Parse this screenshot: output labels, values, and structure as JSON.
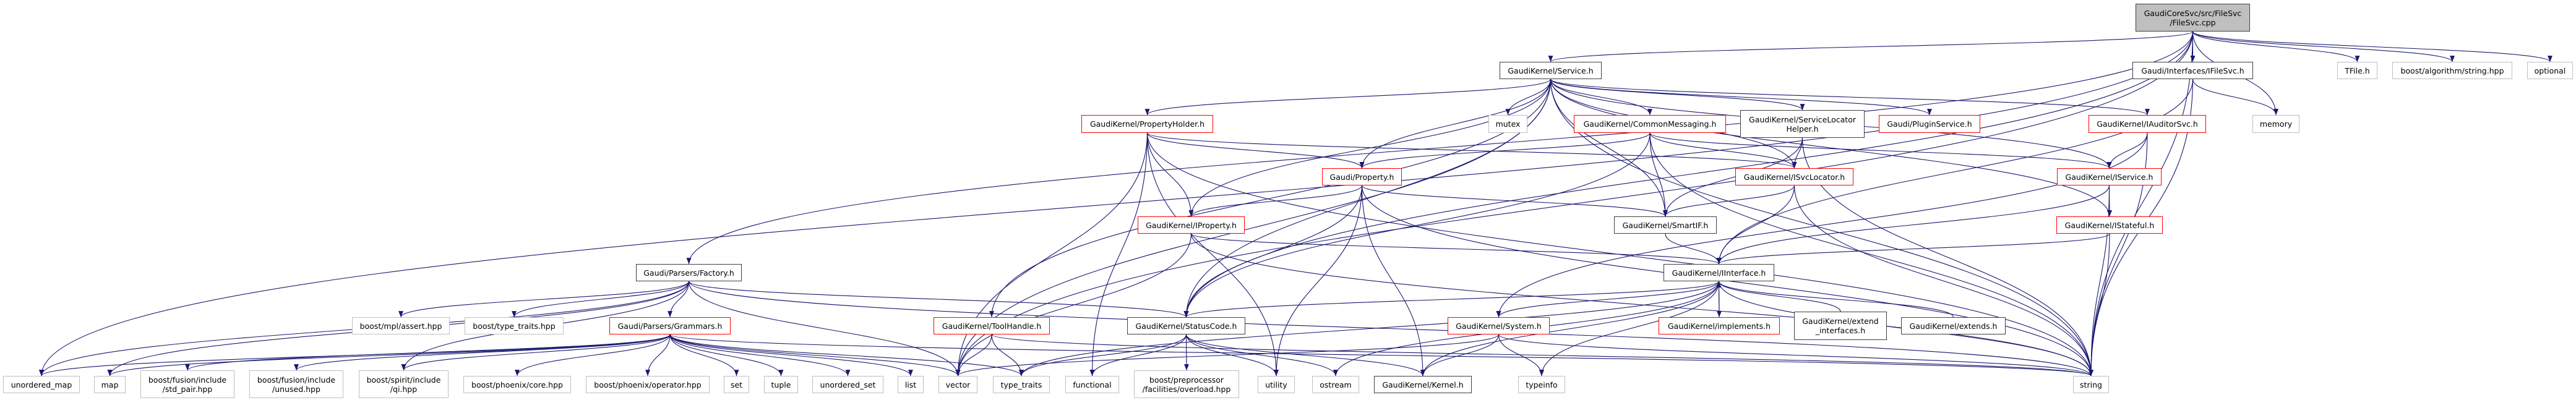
{
  "graph": {
    "colors": {
      "edge": "#191970",
      "root_fill": "#bfbfbf",
      "documented_border": "#404040",
      "undocumented_border": "#ff0000",
      "external_border": "#bfbfbf"
    },
    "nodes": [
      {
        "id": "root",
        "label": "GaudiCoreSvc/src/FileSvc\n/FileSvc.cpp",
        "kind": "root"
      },
      {
        "id": "Service",
        "label": "GaudiKernel/Service.h",
        "kind": "std"
      },
      {
        "id": "IFileSvc",
        "label": "Gaudi/Interfaces/IFileSvc.h",
        "kind": "std"
      },
      {
        "id": "TFile",
        "label": "TFile.h",
        "kind": "ext"
      },
      {
        "id": "boostalg",
        "label": "boost/algorithm/string.hpp",
        "kind": "ext"
      },
      {
        "id": "optional",
        "label": "optional",
        "kind": "ext"
      },
      {
        "id": "memory",
        "label": "memory",
        "kind": "ext"
      },
      {
        "id": "PropertyHolder",
        "label": "GaudiKernel/PropertyHolder.h",
        "kind": "red"
      },
      {
        "id": "mutex",
        "label": "mutex",
        "kind": "ext"
      },
      {
        "id": "CommonMessaging",
        "label": "GaudiKernel/CommonMessaging.h",
        "kind": "red"
      },
      {
        "id": "SLH",
        "label": "GaudiKernel/ServiceLocator\nHelper.h",
        "kind": "std"
      },
      {
        "id": "PluginService",
        "label": "Gaudi/PluginService.h",
        "kind": "red"
      },
      {
        "id": "IAuditorSvc",
        "label": "GaudiKernel/IAuditorSvc.h",
        "kind": "red"
      },
      {
        "id": "Property",
        "label": "Gaudi/Property.h",
        "kind": "red"
      },
      {
        "id": "ISvcLocator",
        "label": "GaudiKernel/ISvcLocator.h",
        "kind": "red"
      },
      {
        "id": "IService",
        "label": "GaudiKernel/IService.h",
        "kind": "red"
      },
      {
        "id": "IProperty",
        "label": "GaudiKernel/IProperty.h",
        "kind": "red"
      },
      {
        "id": "SmartIF",
        "label": "GaudiKernel/SmartIF.h",
        "kind": "std"
      },
      {
        "id": "IStateful",
        "label": "GaudiKernel/IStateful.h",
        "kind": "red"
      },
      {
        "id": "Factory",
        "label": "Gaudi/Parsers/Factory.h",
        "kind": "std"
      },
      {
        "id": "IInterface",
        "label": "GaudiKernel/IInterface.h",
        "kind": "std"
      },
      {
        "id": "mplassert",
        "label": "boost/mpl/assert.hpp",
        "kind": "ext"
      },
      {
        "id": "boosttypetraits",
        "label": "boost/type_traits.hpp",
        "kind": "ext"
      },
      {
        "id": "Grammars",
        "label": "Gaudi/Parsers/Grammars.h",
        "kind": "red"
      },
      {
        "id": "ToolHandle",
        "label": "GaudiKernel/ToolHandle.h",
        "kind": "red"
      },
      {
        "id": "StatusCode",
        "label": "GaudiKernel/StatusCode.h",
        "kind": "std"
      },
      {
        "id": "System",
        "label": "GaudiKernel/System.h",
        "kind": "red"
      },
      {
        "id": "implements",
        "label": "GaudiKernel/implements.h",
        "kind": "red"
      },
      {
        "id": "extend_interfaces",
        "label": "GaudiKernel/extend\n_interfaces.h",
        "kind": "std"
      },
      {
        "id": "extends",
        "label": "GaudiKernel/extends.h",
        "kind": "std"
      },
      {
        "id": "unordered_map",
        "label": "unordered_map",
        "kind": "ext"
      },
      {
        "id": "map",
        "label": "map",
        "kind": "ext"
      },
      {
        "id": "std_pair",
        "label": "boost/fusion/include\n/std_pair.hpp",
        "kind": "ext"
      },
      {
        "id": "unused",
        "label": "boost/fusion/include\n/unused.hpp",
        "kind": "ext"
      },
      {
        "id": "qi",
        "label": "boost/spirit/include\n/qi.hpp",
        "kind": "ext"
      },
      {
        "id": "core",
        "label": "boost/phoenix/core.hpp",
        "kind": "ext"
      },
      {
        "id": "operator",
        "label": "boost/phoenix/operator.hpp",
        "kind": "ext"
      },
      {
        "id": "set",
        "label": "set",
        "kind": "ext"
      },
      {
        "id": "tuple",
        "label": "tuple",
        "kind": "ext"
      },
      {
        "id": "unordered_set",
        "label": "unordered_set",
        "kind": "ext"
      },
      {
        "id": "list",
        "label": "list",
        "kind": "ext"
      },
      {
        "id": "vector",
        "label": "vector",
        "kind": "ext"
      },
      {
        "id": "type_traits",
        "label": "type_traits",
        "kind": "ext"
      },
      {
        "id": "functional",
        "label": "functional",
        "kind": "ext"
      },
      {
        "id": "overload",
        "label": "boost/preprocessor\n/facilities/overload.hpp",
        "kind": "ext"
      },
      {
        "id": "utility",
        "label": "utility",
        "kind": "ext"
      },
      {
        "id": "ostream",
        "label": "ostream",
        "kind": "ext"
      },
      {
        "id": "Kernel",
        "label": "GaudiKernel/Kernel.h",
        "kind": "std"
      },
      {
        "id": "typeinfo",
        "label": "typeinfo",
        "kind": "ext"
      },
      {
        "id": "string",
        "label": "string",
        "kind": "ext"
      }
    ],
    "edges": [
      [
        "root",
        "Service"
      ],
      [
        "root",
        "IFileSvc"
      ],
      [
        "root",
        "TFile"
      ],
      [
        "root",
        "boostalg"
      ],
      [
        "root",
        "optional"
      ],
      [
        "root",
        "memory"
      ],
      [
        "root",
        "string"
      ],
      [
        "root",
        "vector"
      ],
      [
        "root",
        "unordered_map"
      ],
      [
        "root",
        "Factory"
      ],
      [
        "root",
        "StatusCode"
      ],
      [
        "Service",
        "PropertyHolder"
      ],
      [
        "Service",
        "mutex"
      ],
      [
        "Service",
        "CommonMessaging"
      ],
      [
        "Service",
        "SLH"
      ],
      [
        "Service",
        "PluginService"
      ],
      [
        "Service",
        "IAuditorSvc"
      ],
      [
        "Service",
        "IService"
      ],
      [
        "Service",
        "ISvcLocator"
      ],
      [
        "Service",
        "Property"
      ],
      [
        "Service",
        "IProperty"
      ],
      [
        "Service",
        "SmartIF"
      ],
      [
        "Service",
        "ToolHandle"
      ],
      [
        "Service",
        "StatusCode"
      ],
      [
        "Service",
        "vector"
      ],
      [
        "Service",
        "IStateful"
      ],
      [
        "Service",
        "string"
      ],
      [
        "IFileSvc",
        "IInterface"
      ],
      [
        "IFileSvc",
        "memory"
      ],
      [
        "IFileSvc",
        "string"
      ],
      [
        "PropertyHolder",
        "Property"
      ],
      [
        "PropertyHolder",
        "IProperty"
      ],
      [
        "PropertyHolder",
        "vector"
      ],
      [
        "PropertyHolder",
        "utility"
      ],
      [
        "PropertyHolder",
        "functional"
      ],
      [
        "PropertyHolder",
        "string"
      ],
      [
        "PropertyHolder",
        "ISvcLocator"
      ],
      [
        "CommonMessaging",
        "Property"
      ],
      [
        "CommonMessaging",
        "ISvcLocator"
      ],
      [
        "CommonMessaging",
        "SmartIF"
      ],
      [
        "CommonMessaging",
        "IService"
      ],
      [
        "CommonMessaging",
        "StatusCode"
      ],
      [
        "CommonMessaging",
        "string"
      ],
      [
        "SLH",
        "ISvcLocator"
      ],
      [
        "SLH",
        "SmartIF"
      ],
      [
        "SLH",
        "string"
      ],
      [
        "IAuditorSvc",
        "IService"
      ],
      [
        "IAuditorSvc",
        "string"
      ],
      [
        "IAuditorSvc",
        "System"
      ],
      [
        "IService",
        "IStateful"
      ],
      [
        "IService",
        "string"
      ],
      [
        "IService",
        "IInterface"
      ],
      [
        "IStateful",
        "IInterface"
      ],
      [
        "IStateful",
        "string"
      ],
      [
        "Property",
        "IProperty"
      ],
      [
        "Property",
        "SmartIF"
      ],
      [
        "Property",
        "Kernel"
      ],
      [
        "Property",
        "utility"
      ],
      [
        "Property",
        "string"
      ],
      [
        "Property",
        "StatusCode"
      ],
      [
        "ISvcLocator",
        "SmartIF"
      ],
      [
        "ISvcLocator",
        "IInterface"
      ],
      [
        "ISvcLocator",
        "string"
      ],
      [
        "IProperty",
        "IInterface"
      ],
      [
        "IProperty",
        "string"
      ],
      [
        "IProperty",
        "vector"
      ],
      [
        "SmartIF",
        "IInterface"
      ],
      [
        "IInterface",
        "StatusCode"
      ],
      [
        "IInterface",
        "System"
      ],
      [
        "IInterface",
        "implements"
      ],
      [
        "IInterface",
        "Kernel"
      ],
      [
        "IInterface",
        "typeinfo"
      ],
      [
        "IInterface",
        "ostream"
      ],
      [
        "IInterface",
        "string"
      ],
      [
        "IInterface",
        "type_traits"
      ],
      [
        "implements",
        "IInterface"
      ],
      [
        "extend_interfaces",
        "IInterface"
      ],
      [
        "extends",
        "IInterface"
      ],
      [
        "System",
        "Kernel"
      ],
      [
        "System",
        "typeinfo"
      ],
      [
        "System",
        "string"
      ],
      [
        "System",
        "vector"
      ],
      [
        "StatusCode",
        "Kernel"
      ],
      [
        "StatusCode",
        "overload"
      ],
      [
        "StatusCode",
        "utility"
      ],
      [
        "StatusCode",
        "ostream"
      ],
      [
        "StatusCode",
        "functional"
      ],
      [
        "StatusCode",
        "type_traits"
      ],
      [
        "ToolHandle",
        "vector"
      ],
      [
        "ToolHandle",
        "type_traits"
      ],
      [
        "ToolHandle",
        "string"
      ],
      [
        "Factory",
        "mplassert"
      ],
      [
        "Factory",
        "boosttypetraits"
      ],
      [
        "Factory",
        "Grammars"
      ],
      [
        "Factory",
        "StatusCode"
      ],
      [
        "Factory",
        "string"
      ],
      [
        "Factory",
        "vector"
      ],
      [
        "Factory",
        "map"
      ],
      [
        "Factory",
        "unordered_map"
      ],
      [
        "Factory",
        "qi"
      ],
      [
        "Grammars",
        "unordered_map"
      ],
      [
        "Grammars",
        "map"
      ],
      [
        "Grammars",
        "std_pair"
      ],
      [
        "Grammars",
        "unused"
      ],
      [
        "Grammars",
        "qi"
      ],
      [
        "Grammars",
        "core"
      ],
      [
        "Grammars",
        "operator"
      ],
      [
        "Grammars",
        "set"
      ],
      [
        "Grammars",
        "tuple"
      ],
      [
        "Grammars",
        "unordered_set"
      ],
      [
        "Grammars",
        "list"
      ],
      [
        "Grammars",
        "vector"
      ],
      [
        "Grammars",
        "string"
      ],
      [
        "Grammars",
        "type_traits"
      ]
    ]
  }
}
